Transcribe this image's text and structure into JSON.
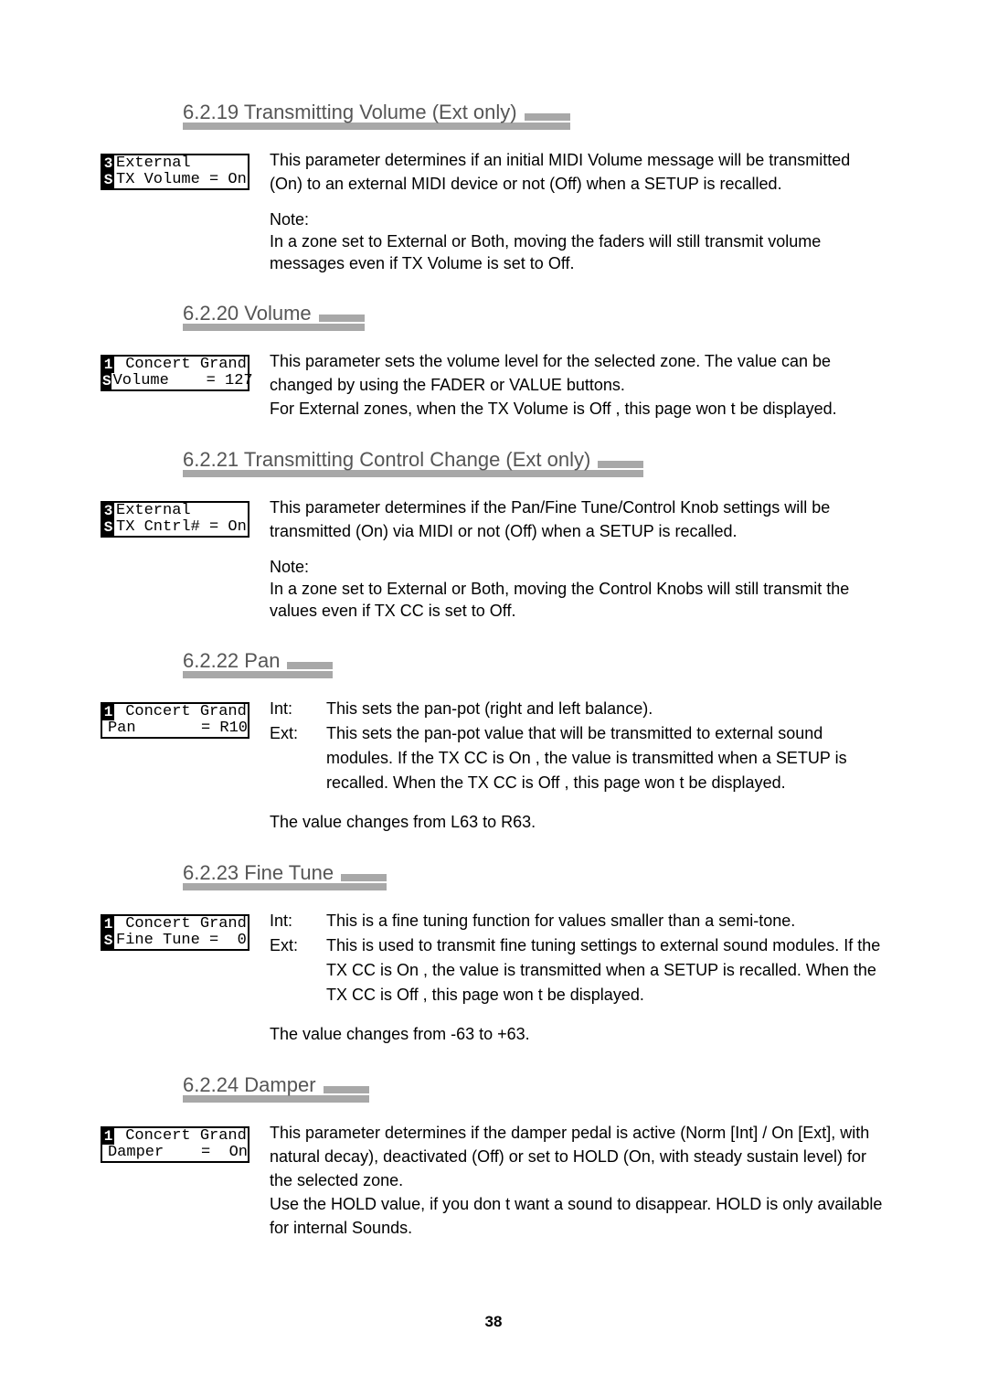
{
  "page_number": "38",
  "colors": {
    "heading_text": "#555555",
    "bar": "#a8a8a8",
    "body": "#000000",
    "bg": "#ffffff"
  },
  "sections": {
    "s1": {
      "title": "6.2.19 Transmitting Volume (Ext only)",
      "lcd": {
        "l1_box": "3",
        "l1_text": "External",
        "l2_box": "S",
        "l2_text": "TX Volume = On"
      },
      "body": "This parameter determines if an initial MIDI Volume message will be transmitted (On) to an external MIDI device or not (Off) when a SETUP is recalled.",
      "note_label": "Note:",
      "note": "In a zone set to External or Both, moving the faders will still transmit volume messages even if TX Volume is set to Off."
    },
    "s2": {
      "title": "6.2.20 Volume",
      "lcd": {
        "l1_box": "1",
        "l1_text": " Concert Grand",
        "l2_box": "S",
        "l2_text": "Volume    = 127"
      },
      "body": "This parameter sets the volume level for the selected zone.  The value can be changed by using the FADER or VALUE buttons.\nFor External zones, when the TX Volume is  Off , this page won t be displayed."
    },
    "s3": {
      "title": "6.2.21 Transmitting Control Change (Ext only)",
      "lcd": {
        "l1_box": "3",
        "l1_text": "External",
        "l2_box": "S",
        "l2_text": "TX Cntrl# = On"
      },
      "body": "This parameter determines if the Pan/Fine Tune/Control Knob settings will be transmitted (On) via MIDI or not (Off) when a SETUP is recalled.",
      "note_label": "Note:",
      "note": "In a zone set to External or Both, moving the Control Knobs will still transmit the values even if TX CC is set to Off."
    },
    "s4": {
      "title": "6.2.22 Pan",
      "lcd": {
        "l1_box": "1",
        "l1_text": " Concert Grand",
        "l2_box": " ",
        "l2_text": "Pan       = R10"
      },
      "int_label": "Int:",
      "int_text": "This sets the pan-pot (right and left balance).",
      "ext_label": "Ext:",
      "ext_text": "This sets the pan-pot value that will be transmitted to external sound modules.  If the TX CC is  On , the value is transmitted when a SETUP is recalled.  When the TX CC is  Off , this page won t be displayed.",
      "after": "The value changes from L63 to R63."
    },
    "s5": {
      "title": "6.2.23 Fine Tune",
      "lcd": {
        "l1_box": "1",
        "l1_text": " Concert Grand",
        "l2_box": "S",
        "l2_text": "Fine Tune =  0"
      },
      "int_label": "Int:",
      "int_text": "This is a fine tuning function for values smaller than a semi-tone.",
      "ext_label": "Ext:",
      "ext_text": "This is used to transmit fine tuning settings to external sound modules.  If the TX CC is  On , the value is transmitted when a SETUP is recalled.  When the TX CC is  Off , this page won t be displayed.",
      "after": "The value changes from -63 to +63."
    },
    "s6": {
      "title": "6.2.24 Damper",
      "lcd": {
        "l1_box": "1",
        "l1_text": " Concert Grand",
        "l2_box": " ",
        "l2_text": "Damper    =  On"
      },
      "body": "This parameter determines if the damper pedal is active (Norm [Int] / On [Ext], with natural decay), deactivated (Off) or set to HOLD (On, with steady sustain level) for the selected zone.\nUse the HOLD value, if you don t want a sound to disappear.  HOLD is only available for internal Sounds."
    }
  }
}
